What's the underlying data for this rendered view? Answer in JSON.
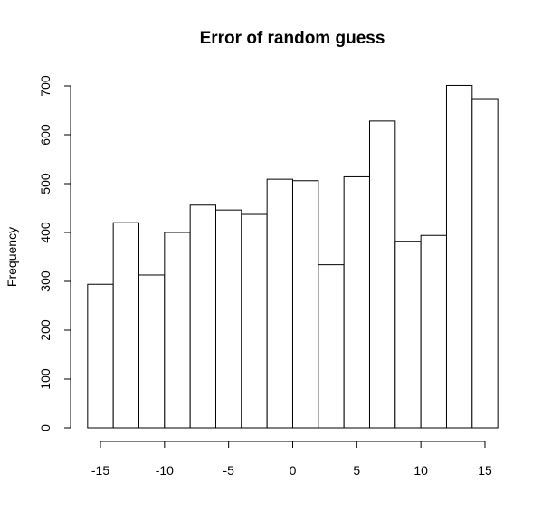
{
  "chart_data": {
    "type": "bar",
    "title": "Error of random guess",
    "xlabel": "",
    "ylabel": "Frequency",
    "bins": [
      {
        "x0": -16,
        "x1": -14,
        "count": 294
      },
      {
        "x0": -14,
        "x1": -12,
        "count": 420
      },
      {
        "x0": -12,
        "x1": -10,
        "count": 313
      },
      {
        "x0": -10,
        "x1": -8,
        "count": 400
      },
      {
        "x0": -8,
        "x1": -6,
        "count": 456
      },
      {
        "x0": -6,
        "x1": -4,
        "count": 446
      },
      {
        "x0": -4,
        "x1": -2,
        "count": 437
      },
      {
        "x0": -2,
        "x1": 0,
        "count": 509
      },
      {
        "x0": 0,
        "x1": 2,
        "count": 506
      },
      {
        "x0": 2,
        "x1": 4,
        "count": 334
      },
      {
        "x0": 4,
        "x1": 6,
        "count": 514
      },
      {
        "x0": 6,
        "x1": 8,
        "count": 628
      },
      {
        "x0": 8,
        "x1": 10,
        "count": 382
      },
      {
        "x0": 10,
        "x1": 12,
        "count": 394
      },
      {
        "x0": 12,
        "x1": 14,
        "count": 701
      },
      {
        "x0": 14,
        "x1": 16,
        "count": 674
      }
    ],
    "xticks": [
      -15,
      -10,
      -5,
      0,
      5,
      10,
      15
    ],
    "yticks": [
      0,
      100,
      200,
      300,
      400,
      500,
      600,
      700
    ],
    "xlim": [
      -15,
      15
    ],
    "ylim": [
      0,
      700
    ],
    "grid": false,
    "legend": "none"
  }
}
